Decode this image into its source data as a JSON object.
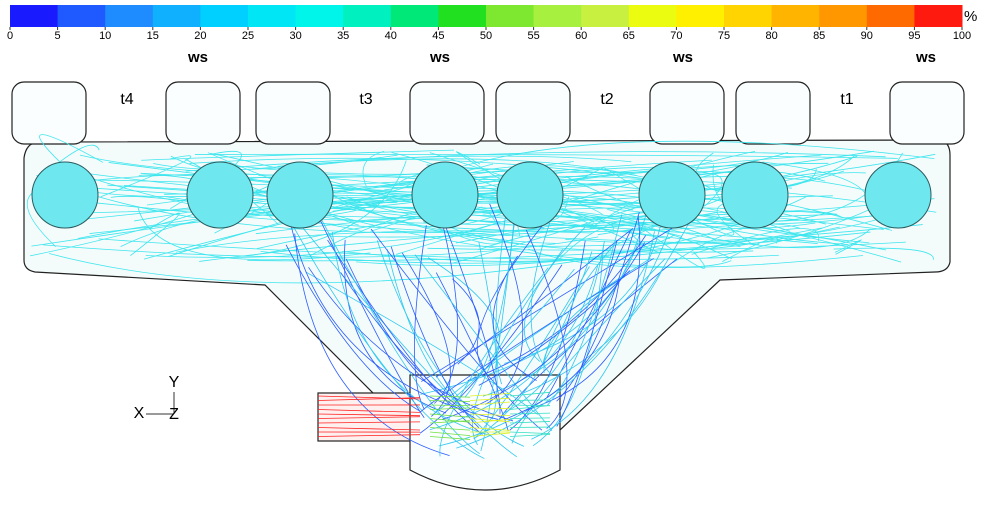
{
  "colorbar": {
    "unit": "%",
    "range": [
      0,
      100
    ],
    "ticks": [
      0,
      5,
      10,
      15,
      20,
      25,
      30,
      35,
      40,
      45,
      50,
      55,
      60,
      65,
      70,
      75,
      80,
      85,
      90,
      95,
      100
    ],
    "colors": [
      "#1a1aff",
      "#1e5aff",
      "#1e8cff",
      "#10b0ff",
      "#00d0ff",
      "#00e6f5",
      "#00f5ea",
      "#00f0c0",
      "#00e878",
      "#20e020",
      "#7ee830",
      "#a8f040",
      "#c8f040",
      "#ecfc10",
      "#fff000",
      "#ffd400",
      "#ffb400",
      "#ff9800",
      "#ff6a00",
      "#ff1a10"
    ]
  },
  "labels": {
    "ports": [
      "ws",
      "ws",
      "ws",
      "ws"
    ],
    "cylinders": [
      "t4",
      "t3",
      "t2",
      "t1"
    ]
  },
  "axes": {
    "y": "Y",
    "x": "X",
    "z": "Z"
  }
}
